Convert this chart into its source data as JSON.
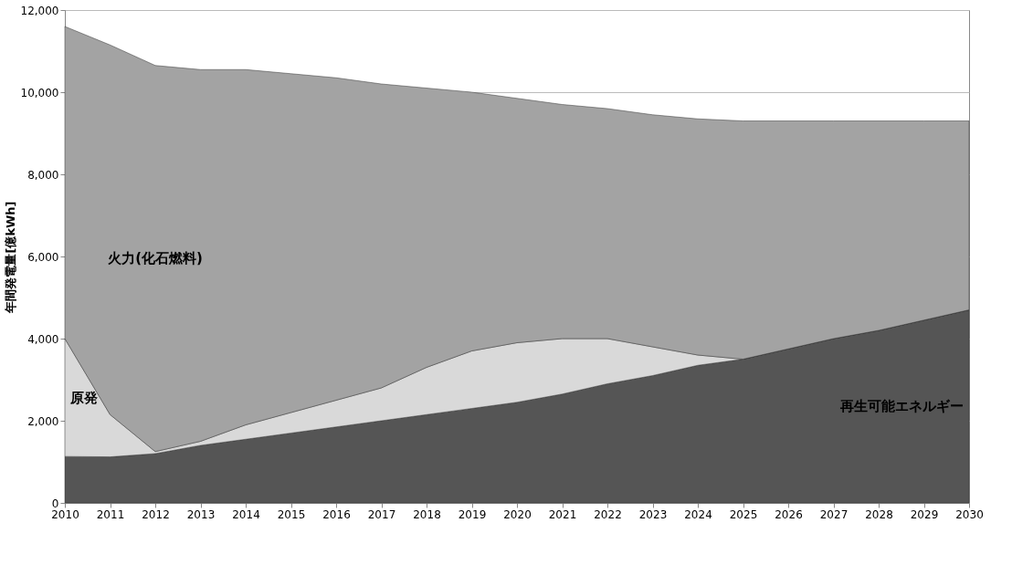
{
  "chart_data": {
    "type": "area",
    "stacked": true,
    "ylabel": "年間発電量[億kWh]",
    "legend": false,
    "grid": "y",
    "x": [
      2010,
      2011,
      2012,
      2013,
      2014,
      2015,
      2016,
      2017,
      2018,
      2019,
      2020,
      2021,
      2022,
      2023,
      2024,
      2025,
      2026,
      2027,
      2028,
      2029,
      2030
    ],
    "xlim": [
      2010,
      2030
    ],
    "xticks": [
      2010,
      2011,
      2012,
      2013,
      2014,
      2015,
      2016,
      2017,
      2018,
      2019,
      2020,
      2021,
      2022,
      2023,
      2024,
      2025,
      2026,
      2027,
      2028,
      2029,
      2030
    ],
    "ylim": [
      0,
      12000
    ],
    "yticks": [
      {
        "value": 0,
        "label": "0"
      },
      {
        "value": 2000,
        "label": "2,000"
      },
      {
        "value": 4000,
        "label": "4,000"
      },
      {
        "value": 6000,
        "label": "6,000"
      },
      {
        "value": 8000,
        "label": "8,000"
      },
      {
        "value": 10000,
        "label": "10,000"
      },
      {
        "value": 12000,
        "label": "12,000"
      }
    ],
    "series": [
      {
        "name": "再生可能エネルギー",
        "color": "#555555",
        "values": [
          1130,
          1120,
          1200,
          1400,
          1550,
          1700,
          1850,
          2000,
          2150,
          2300,
          2450,
          2650,
          2900,
          3100,
          3350,
          3500,
          3750,
          4000,
          4200,
          4450,
          4700
        ]
      },
      {
        "name": "原発",
        "color": "#d9d9d9",
        "values": [
          2870,
          1030,
          50,
          100,
          350,
          500,
          650,
          800,
          1150,
          1400,
          1450,
          1350,
          1100,
          700,
          250,
          0,
          0,
          0,
          0,
          0,
          0
        ]
      },
      {
        "name": "火力(化石燃料)",
        "color": "#a3a3a3",
        "values": [
          7600,
          9000,
          9400,
          9050,
          8650,
          8250,
          7850,
          7400,
          6800,
          6300,
          5950,
          5700,
          5600,
          5650,
          5750,
          5800,
          5550,
          5300,
          5100,
          4850,
          4600
        ]
      }
    ]
  }
}
